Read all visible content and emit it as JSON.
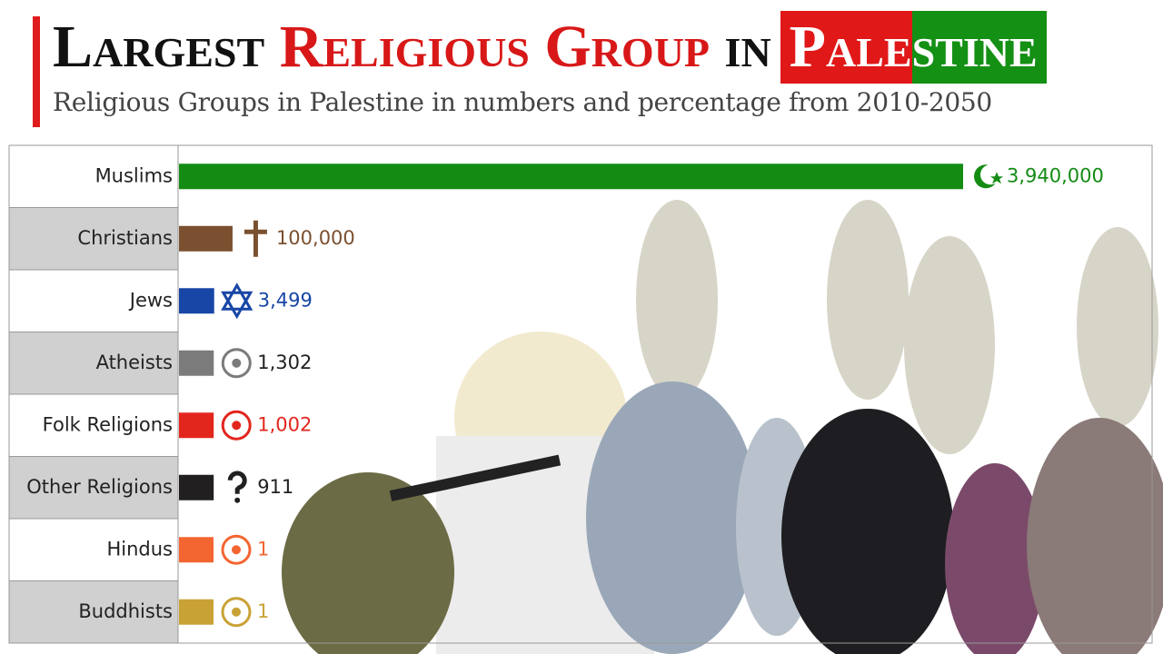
{
  "chart_data": {
    "type": "barh",
    "title_parts": [
      "Largest",
      "Religious Group",
      "in",
      "Pale",
      "stine"
    ],
    "subtitle": "Religious Groups in Palestine in numbers and percentage from 2010-2050",
    "categories": [
      "Muslims",
      "Christians",
      "Jews",
      "Atheists",
      "Folk Religions",
      "Other Religions",
      "Hindus",
      "Buddhists"
    ],
    "values": [
      3940000,
      100000,
      3499,
      1302,
      1002,
      911,
      1,
      1
    ],
    "value_labels": [
      "3,940,000",
      "100,000",
      "3,499",
      "1,302",
      "1,002",
      "911",
      "1",
      "1"
    ],
    "colors": [
      "#148c14",
      "#7b5030",
      "#1846a6",
      "#7b7b7b",
      "#e2261e",
      "#221f20",
      "#f36531",
      "#c9a236"
    ]
  }
}
